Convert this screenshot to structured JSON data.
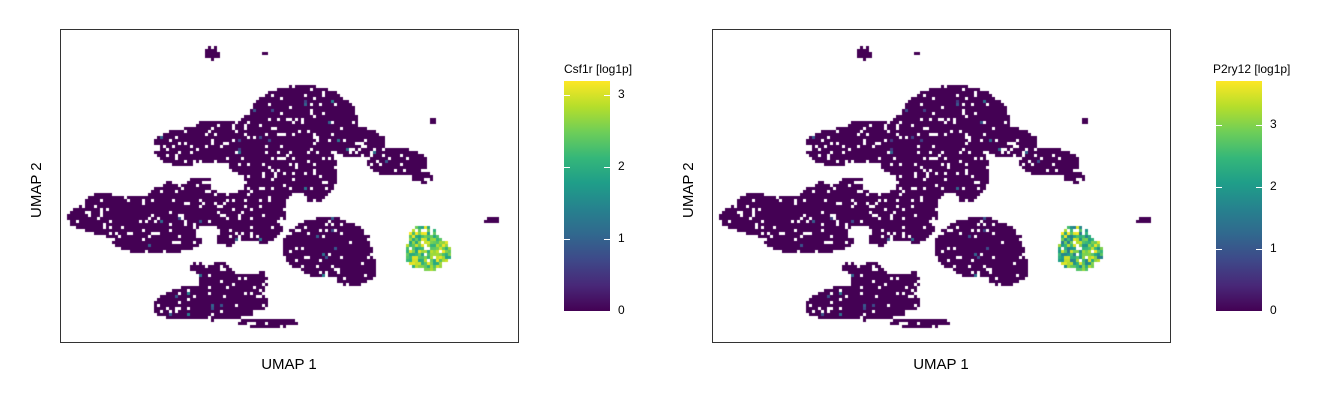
{
  "colormap": [
    "#440154",
    "#482878",
    "#3e4989",
    "#31688e",
    "#26828e",
    "#1f9e89",
    "#35b779",
    "#6ece58",
    "#b5de2b",
    "#fde725"
  ],
  "chart_data": [
    {
      "type": "scatter",
      "title": "",
      "xlabel": "UMAP 1",
      "ylabel": "UMAP 2",
      "colorbar_title": "Csf1r [log1p]",
      "colorbar_range": [
        0,
        3.2
      ],
      "colorbar_ticks": [
        {
          "value": 0,
          "label": "0"
        },
        {
          "value": 1,
          "label": "1"
        },
        {
          "value": 2,
          "label": "2"
        },
        {
          "value": 3,
          "label": "3"
        }
      ],
      "hotspot_expression": [
        1.8,
        3.2
      ]
    },
    {
      "type": "scatter",
      "title": "",
      "xlabel": "UMAP 1",
      "ylabel": "UMAP 2",
      "colorbar_title": "P2ry12 [log1p]",
      "colorbar_range": [
        0,
        3.7
      ],
      "colorbar_ticks": [
        {
          "value": 0,
          "label": "0"
        },
        {
          "value": 1,
          "label": "1"
        },
        {
          "value": 2,
          "label": "2"
        },
        {
          "value": 3,
          "label": "3"
        }
      ],
      "hotspot_expression": [
        1.5,
        3.7
      ]
    }
  ]
}
